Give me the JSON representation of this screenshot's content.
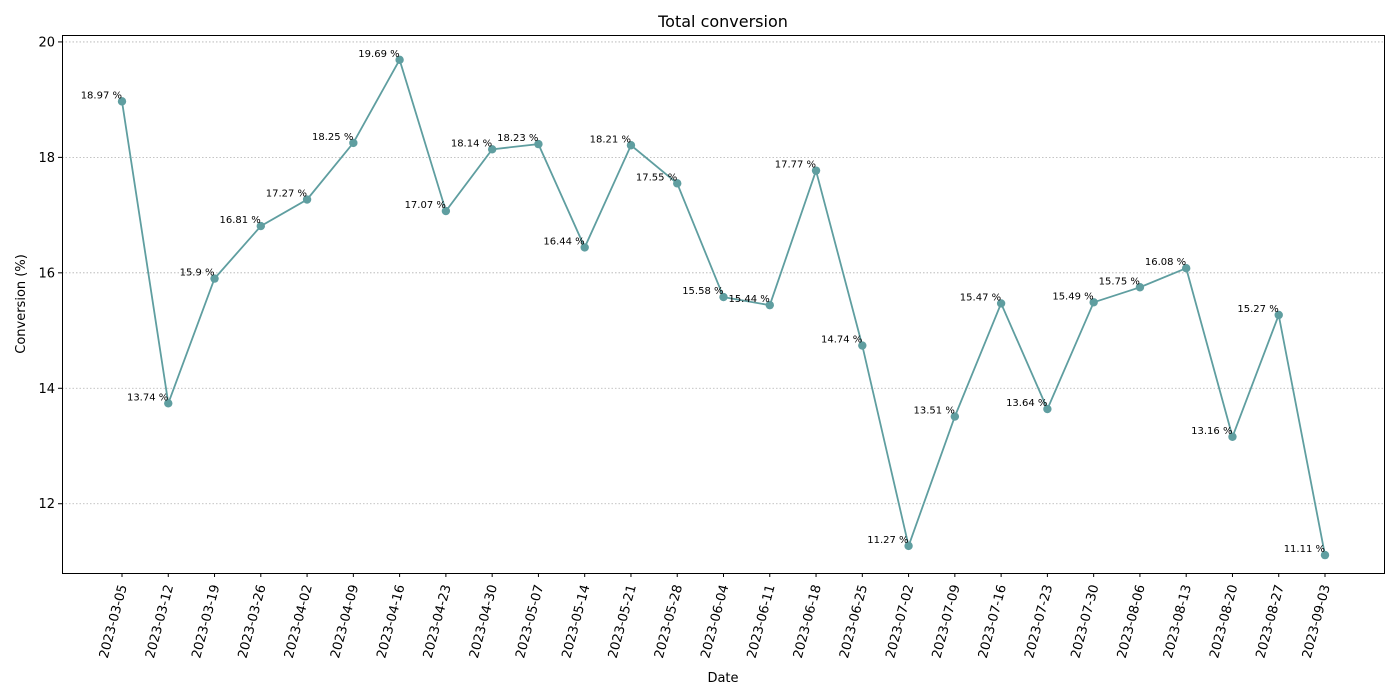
{
  "chart_data": {
    "type": "line",
    "title": "Total conversion",
    "xlabel": "Date",
    "ylabel": "Conversion (%)",
    "x": [
      "2023-03-05",
      "2023-03-12",
      "2023-03-19",
      "2023-03-26",
      "2023-04-02",
      "2023-04-09",
      "2023-04-16",
      "2023-04-23",
      "2023-04-30",
      "2023-05-07",
      "2023-05-14",
      "2023-05-21",
      "2023-05-28",
      "2023-06-04",
      "2023-06-11",
      "2023-06-18",
      "2023-06-25",
      "2023-07-02",
      "2023-07-09",
      "2023-07-16",
      "2023-07-23",
      "2023-07-30",
      "2023-08-06",
      "2023-08-13",
      "2023-08-20",
      "2023-08-27",
      "2023-09-03"
    ],
    "values": [
      18.97,
      13.74,
      15.9,
      16.81,
      17.27,
      18.25,
      19.69,
      17.07,
      18.14,
      18.23,
      16.44,
      18.21,
      17.55,
      15.58,
      15.44,
      17.77,
      14.74,
      11.27,
      13.51,
      15.47,
      13.64,
      15.49,
      15.75,
      16.08,
      13.16,
      15.27,
      11.11
    ],
    "data_labels": [
      "18.97 %",
      "13.74 %",
      "15.9 %",
      "16.81 %",
      "17.27 %",
      "18.25 %",
      "19.69 %",
      "17.07 %",
      "18.14 %",
      "18.23 %",
      "16.44 %",
      "18.21 %",
      "17.55 %",
      "15.58 %",
      "15.44 %",
      "17.77 %",
      "14.74 %",
      "11.27 %",
      "13.51 %",
      "15.47 %",
      "13.64 %",
      "15.49 %",
      "15.75 %",
      "16.08 %",
      "13.16 %",
      "15.27 %",
      "11.11 %"
    ],
    "yticks": [
      12,
      14,
      16,
      18,
      20
    ],
    "ylim": [
      10.8,
      20.12
    ],
    "grid": "y-dotted",
    "line_color": "#5f9ea0",
    "grid_color": "#b0b0b0"
  }
}
